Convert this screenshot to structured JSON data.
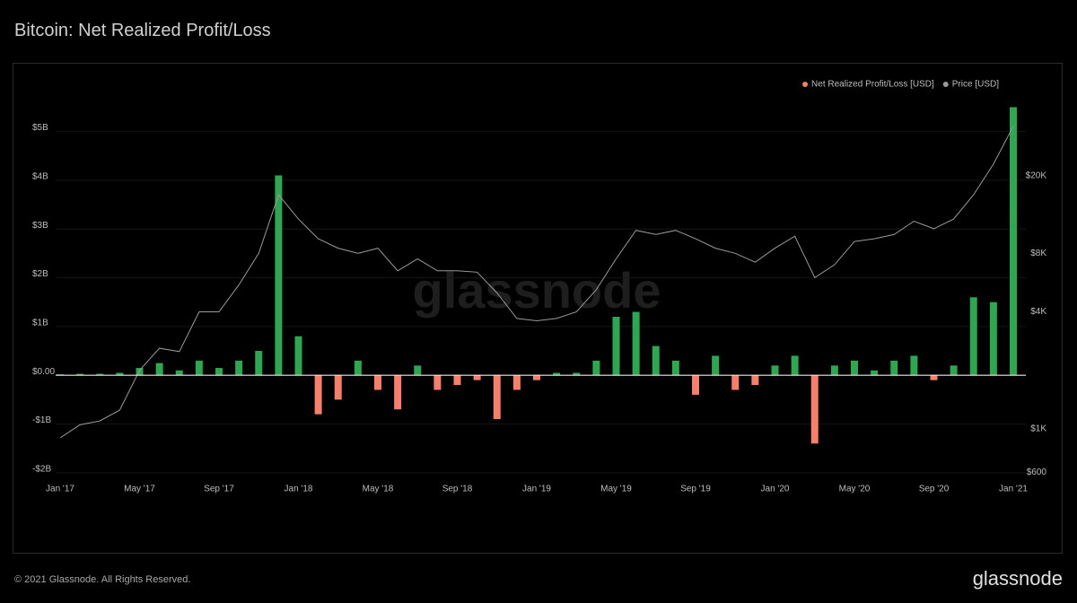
{
  "chart_data": {
    "type": "bar-line",
    "title": "Bitcoin: Net Realized Profit/Loss",
    "watermark": "glassnode",
    "footer": "© 2021 Glassnode. All Rights Reserved.",
    "logo": "glassnode",
    "x": [
      "2017-01",
      "2017-02",
      "2017-03",
      "2017-04",
      "2017-05",
      "2017-06",
      "2017-07",
      "2017-08",
      "2017-09",
      "2017-10",
      "2017-11",
      "2017-12",
      "2018-01",
      "2018-02",
      "2018-03",
      "2018-04",
      "2018-05",
      "2018-06",
      "2018-07",
      "2018-08",
      "2018-09",
      "2018-10",
      "2018-11",
      "2018-12",
      "2019-01",
      "2019-02",
      "2019-03",
      "2019-04",
      "2019-05",
      "2019-06",
      "2019-07",
      "2019-08",
      "2019-09",
      "2019-10",
      "2019-11",
      "2019-12",
      "2020-01",
      "2020-02",
      "2020-03",
      "2020-04",
      "2020-05",
      "2020-06",
      "2020-07",
      "2020-08",
      "2020-09",
      "2020-10",
      "2020-11",
      "2020-12",
      "2021-01"
    ],
    "xlim": [
      "2017-01",
      "2021-01"
    ],
    "xticks": [
      {
        "value": "2017-01",
        "label": "Jan '17"
      },
      {
        "value": "2017-05",
        "label": "May '17"
      },
      {
        "value": "2017-09",
        "label": "Sep '17"
      },
      {
        "value": "2018-01",
        "label": "Jan '18"
      },
      {
        "value": "2018-05",
        "label": "May '18"
      },
      {
        "value": "2018-09",
        "label": "Sep '18"
      },
      {
        "value": "2019-01",
        "label": "Jan '19"
      },
      {
        "value": "2019-05",
        "label": "May '19"
      },
      {
        "value": "2019-09",
        "label": "Sep '19"
      },
      {
        "value": "2020-01",
        "label": "Jan '20"
      },
      {
        "value": "2020-05",
        "label": "May '20"
      },
      {
        "value": "2020-09",
        "label": "Sep '20"
      },
      {
        "value": "2021-01",
        "label": "Jan '21"
      }
    ],
    "ylim": [
      -2.15,
      5.95
    ],
    "yticks": [
      {
        "value": -2,
        "label": "-$2B"
      },
      {
        "value": -1,
        "label": "-$1B"
      },
      {
        "value": 0,
        "label": "$0.00"
      },
      {
        "value": 1,
        "label": "$1B"
      },
      {
        "value": 2,
        "label": "$2B"
      },
      {
        "value": 3,
        "label": "$3B"
      },
      {
        "value": 4,
        "label": "$4B"
      },
      {
        "value": 5,
        "label": "$5B"
      }
    ],
    "y2lim": [
      546,
      58500
    ],
    "y2log": true,
    "y2ticks": [
      {
        "value": 600,
        "label": "$600"
      },
      {
        "value": 1000,
        "label": "$1K"
      },
      {
        "value": 4000,
        "label": "$4K"
      },
      {
        "value": 8000,
        "label": "$8K"
      },
      {
        "value": 20000,
        "label": "$20K"
      }
    ],
    "grid": true,
    "legend": "top-right",
    "series": [
      {
        "name": "Net Realized Profit/Loss [USD]",
        "color": "#f4806b",
        "positive_color": "#2fa652",
        "values": [
          0.02,
          0.03,
          0.03,
          0.05,
          0.15,
          0.25,
          0.1,
          0.3,
          0.15,
          0.3,
          0.5,
          4.1,
          0.8,
          -0.8,
          -0.5,
          0.3,
          -0.3,
          -0.7,
          0.2,
          -0.3,
          -0.2,
          -0.1,
          -0.9,
          -0.3,
          -0.1,
          0.05,
          0.05,
          0.3,
          1.2,
          1.3,
          0.6,
          0.3,
          -0.4,
          0.4,
          -0.3,
          -0.2,
          0.2,
          0.4,
          -1.4,
          0.2,
          0.3,
          0.1,
          0.3,
          0.4,
          -0.1,
          0.2,
          1.6,
          1.5,
          5.5
        ]
      },
      {
        "name": "Price [USD]",
        "color": "#9a9a9a",
        "axis": "y2",
        "values": [
          900,
          1050,
          1100,
          1250,
          2000,
          2600,
          2500,
          4000,
          4000,
          5500,
          8000,
          16000,
          12000,
          9500,
          8500,
          8000,
          8500,
          6500,
          7500,
          6500,
          6500,
          6400,
          5000,
          3700,
          3600,
          3700,
          4000,
          5200,
          7500,
          10500,
          10000,
          10500,
          9500,
          8500,
          8000,
          7200,
          8500,
          9800,
          6000,
          7000,
          9200,
          9500,
          10000,
          11700,
          10700,
          12000,
          16000,
          23000,
          36000
        ]
      }
    ]
  }
}
